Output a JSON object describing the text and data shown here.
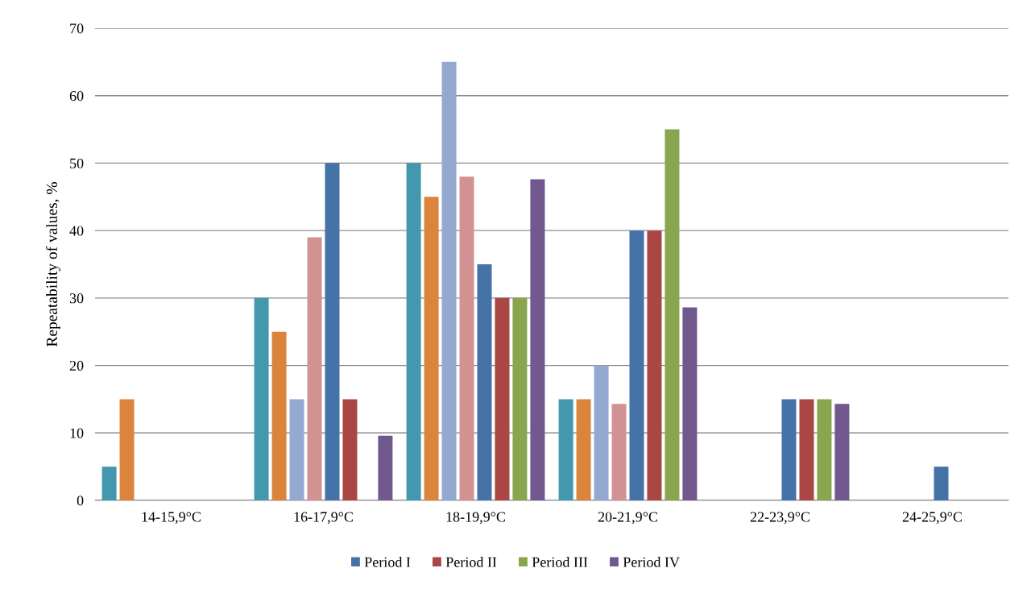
{
  "chart_data": {
    "type": "bar",
    "ylabel": "Repeatability of values, %",
    "categories": [
      "14-15,9°C",
      "16-17,9°C",
      "18-19,9°C",
      "20-21,9°C",
      "22-23,9°C",
      "24-25,9°C"
    ],
    "series": [
      {
        "color": "#4398ae",
        "values": [
          5,
          30,
          50,
          15,
          null,
          null
        ]
      },
      {
        "color": "#db843d",
        "values": [
          15,
          25,
          45,
          15,
          null,
          null
        ]
      },
      {
        "color": "#94a9d0",
        "values": [
          null,
          15,
          65,
          20,
          null,
          null
        ]
      },
      {
        "color": "#d39292",
        "values": [
          null,
          39,
          48,
          14.3,
          null,
          null
        ]
      },
      {
        "name": "Period I",
        "color": "#4572a7",
        "values": [
          null,
          50,
          35,
          40,
          15,
          5
        ]
      },
      {
        "name": "Period II",
        "color": "#aa4643",
        "values": [
          null,
          15,
          30,
          40,
          15,
          null
        ]
      },
      {
        "name": "Period III",
        "color": "#89a54e",
        "values": [
          null,
          null,
          30,
          55,
          15,
          null
        ]
      },
      {
        "name": "Period IV",
        "color": "#71588f",
        "values": [
          null,
          9.6,
          47.6,
          28.6,
          14.3,
          null
        ]
      }
    ],
    "ylim": [
      0,
      70
    ],
    "yticks": [
      0,
      10,
      20,
      30,
      40,
      50,
      60,
      70
    ],
    "grid": "y",
    "legend": "bottom"
  }
}
